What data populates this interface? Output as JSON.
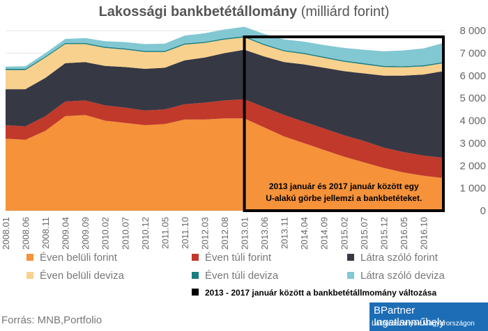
{
  "title": {
    "bold": "Lakossági bankbetétállomány",
    "rest": " (milliárd forint)"
  },
  "chart_data": {
    "type": "area",
    "stacked": true,
    "title": "Lakossági bankbetétállomány (milliárd forint)",
    "ylabel": "milliárd forint",
    "ylim": [
      0,
      8000
    ],
    "y_ticks": [
      "0",
      "1 000",
      "2 000",
      "3 000",
      "4 000",
      "5 000",
      "6 000",
      "7 000",
      "8 000"
    ],
    "x_ticks": [
      "2008.01",
      "2008.06",
      "2008.11",
      "2009.04",
      "2009.09",
      "2010.02",
      "2010.07",
      "2010.12",
      "2011.05",
      "2011.10",
      "2012.03",
      "2012.08",
      "2013.01",
      "2013.06",
      "2013.11",
      "2014.04",
      "2014.09",
      "2015.02",
      "2015.07",
      "2015.12",
      "2016.05",
      "2016.10"
    ],
    "x": [
      "2008.01",
      "2008.06",
      "2008.11",
      "2009.04",
      "2009.09",
      "2010.02",
      "2010.07",
      "2010.12",
      "2011.05",
      "2011.10",
      "2012.03",
      "2012.08",
      "2013.01",
      "2013.06",
      "2013.11",
      "2014.04",
      "2014.09",
      "2015.02",
      "2015.07",
      "2015.12",
      "2016.05",
      "2016.10",
      "2017.01"
    ],
    "series": [
      {
        "name": "Éven belüli forint",
        "color": "#f5923a",
        "values": [
          3200,
          3150,
          3550,
          4200,
          4250,
          4000,
          3900,
          3800,
          3850,
          4050,
          4050,
          4100,
          4100,
          3700,
          3300,
          3000,
          2700,
          2400,
          2150,
          1900,
          1700,
          1550,
          1450
        ]
      },
      {
        "name": "Éven túli forint",
        "color": "#c0392b",
        "values": [
          600,
          600,
          650,
          650,
          650,
          680,
          680,
          650,
          650,
          680,
          750,
          800,
          850,
          900,
          950,
          950,
          950,
          950,
          950,
          900,
          900,
          900,
          900
        ]
      },
      {
        "name": "Látra szóló forint",
        "color": "#363844",
        "values": [
          1600,
          1650,
          1700,
          1700,
          1700,
          1750,
          1800,
          1850,
          1850,
          1950,
          2000,
          2100,
          2200,
          2250,
          2350,
          2550,
          2700,
          2850,
          3000,
          3200,
          3400,
          3600,
          3850
        ]
      },
      {
        "name": "Éven belüli deviza",
        "color": "#f8d18e",
        "values": [
          850,
          850,
          900,
          850,
          800,
          800,
          780,
          750,
          700,
          700,
          650,
          600,
          550,
          500,
          480,
          460,
          440,
          420,
          400,
          380,
          370,
          360,
          350
        ]
      },
      {
        "name": "Éven túli deviza",
        "color": "#1a7d80",
        "values": [
          50,
          50,
          50,
          50,
          50,
          50,
          50,
          50,
          50,
          50,
          50,
          50,
          50,
          50,
          50,
          50,
          50,
          50,
          50,
          50,
          50,
          50,
          50
        ]
      },
      {
        "name": "Látra szóló deviza",
        "color": "#82c8d2",
        "values": [
          100,
          120,
          150,
          180,
          220,
          250,
          280,
          300,
          320,
          350,
          380,
          400,
          420,
          450,
          480,
          500,
          520,
          560,
          600,
          650,
          700,
          750,
          850
        ]
      }
    ],
    "highlight": {
      "label": "2013 - 2017 január között a bankbetétállmomány változása",
      "from": "2013.01",
      "to": "2017.01",
      "color": "#000000"
    },
    "annotation": [
      "2013 január és 2017 január között egy",
      "U-alakú görbe jellemzi a bankbetéteket."
    ],
    "legend_position": "bottom"
  },
  "source": "Forrás: MNB,Portfolio",
  "brand": {
    "line1": "BPartner Ingatlanműhely",
    "line2": "Lakásviszonyok Magyarországon"
  }
}
